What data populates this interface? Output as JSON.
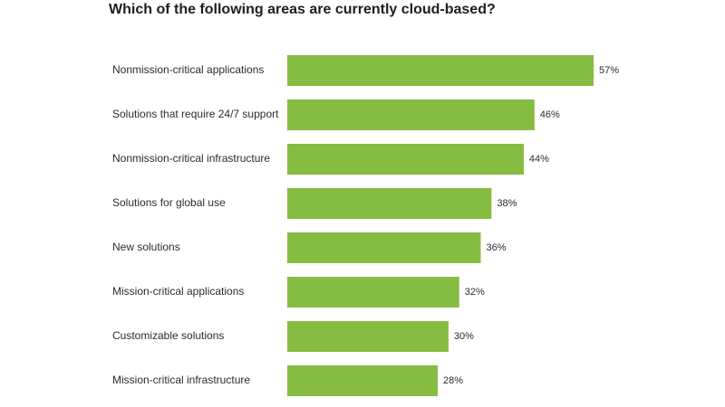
{
  "chart_data": {
    "type": "bar",
    "orientation": "horizontal",
    "title": "Which of the following areas are currently cloud-based?",
    "categories": [
      "Nonmission-critical applications",
      "Solutions that require 24/7 support",
      "Nonmission-critical infrastructure",
      "Solutions for global use",
      "New solutions",
      "Mission-critical applications",
      "Customizable solutions",
      "Mission-critical infrastructure"
    ],
    "values": [
      57,
      46,
      44,
      38,
      36,
      32,
      30,
      28
    ],
    "value_labels": [
      "57%",
      "46%",
      "44%",
      "38%",
      "36%",
      "32%",
      "30%",
      "28%"
    ],
    "unit": "%",
    "bar_color": "#86bc41",
    "grid": false,
    "legend": "none"
  }
}
